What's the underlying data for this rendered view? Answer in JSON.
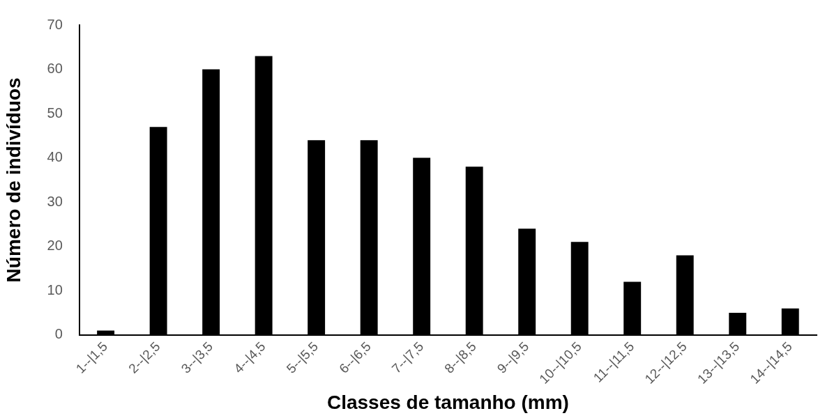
{
  "chart_data": {
    "type": "bar",
    "xlabel": "Classes de tamanho (mm)",
    "ylabel": "Número de indivíduos",
    "categories": [
      "1--|1,5",
      "2--|2,5",
      "3--|3,5",
      "4--|4,5",
      "5--|5,5",
      "6--|6,5",
      "7--|7,5",
      "8--|8,5",
      "9--|9,5",
      "10--|10,5",
      "11--|11,5",
      "12--|12,5",
      "13--|13,5",
      "14--|14,5"
    ],
    "values": [
      1,
      47,
      60,
      63,
      44,
      44,
      40,
      38,
      24,
      21,
      12,
      18,
      5,
      6
    ],
    "color": "#000000",
    "ylim": [
      0,
      70
    ],
    "yticks": [
      0,
      10,
      20,
      30,
      40,
      50,
      60,
      70
    ],
    "grid": false,
    "legend": false
  }
}
